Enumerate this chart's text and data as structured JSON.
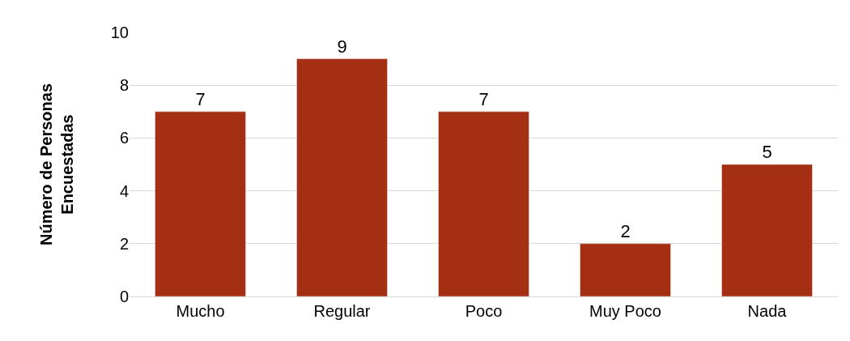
{
  "chart_data": {
    "type": "bar",
    "ylabel": "Número de Personas\nEncuestadas",
    "categories": [
      "Mucho",
      "Regular",
      "Poco",
      "Muy Poco",
      "Nada"
    ],
    "values": [
      7,
      9,
      7,
      2,
      5
    ],
    "color": "#a52f12",
    "ylim": [
      0,
      10
    ],
    "yticks": [
      0,
      2,
      4,
      6,
      8,
      10
    ],
    "grid": "y",
    "data_labels": true,
    "legend": false
  }
}
